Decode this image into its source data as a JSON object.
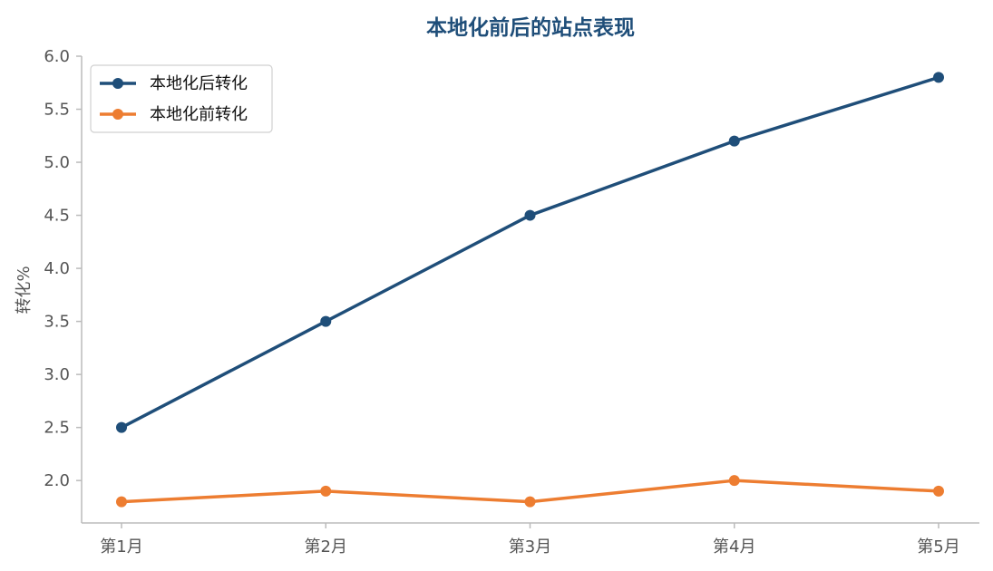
{
  "chart_data": {
    "type": "line",
    "title": "本地化前后的站点表现",
    "xlabel": "",
    "ylabel": "转化%",
    "categories": [
      "第1月",
      "第2月",
      "第3月",
      "第4月",
      "第5月"
    ],
    "ylim": [
      1.6,
      6.0
    ],
    "yticks": [
      "2.0",
      "2.5",
      "3.0",
      "3.5",
      "4.0",
      "4.5",
      "5.0",
      "5.5",
      "6.0"
    ],
    "grid": false,
    "legend_position": "top-left",
    "series": [
      {
        "name": "本地化后转化",
        "color": "#1f4e79",
        "values": [
          2.5,
          3.5,
          4.5,
          5.2,
          5.8
        ]
      },
      {
        "name": "本地化前转化",
        "color": "#ed7d31",
        "values": [
          1.8,
          1.9,
          1.8,
          2.0,
          1.9
        ]
      }
    ]
  }
}
